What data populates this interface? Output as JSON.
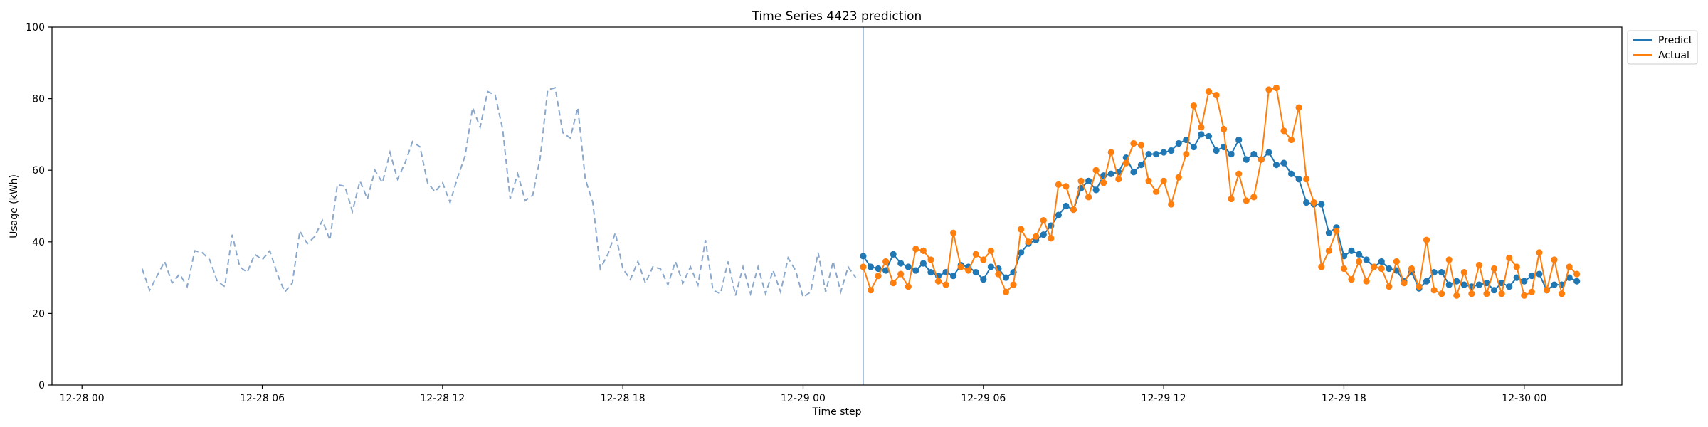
{
  "chart_data": {
    "type": "line",
    "title": "Time Series 4423 prediction",
    "xlabel": "Time step",
    "ylabel": "Usage (kWh)",
    "ylim": [
      0,
      100
    ],
    "yticks": [
      0,
      20,
      40,
      60,
      80,
      100
    ],
    "xlim": [
      "2022-12-27 23:00",
      "2022-12-30 03:15"
    ],
    "xticks": [
      {
        "label": "12-28 00",
        "t": "2022-12-28 00:00"
      },
      {
        "label": "12-28 06",
        "t": "2022-12-28 06:00"
      },
      {
        "label": "12-28 12",
        "t": "2022-12-28 12:00"
      },
      {
        "label": "12-28 18",
        "t": "2022-12-28 18:00"
      },
      {
        "label": "12-29 00",
        "t": "2022-12-29 00:00"
      },
      {
        "label": "12-29 06",
        "t": "2022-12-29 06:00"
      },
      {
        "label": "12-29 12",
        "t": "2022-12-29 12:00"
      },
      {
        "label": "12-29 18",
        "t": "2022-12-29 18:00"
      },
      {
        "label": "12-30 00",
        "t": "2022-12-30 00:00"
      }
    ],
    "forecast_start": "2022-12-29 02:00",
    "grid": false,
    "legend_position": "outside-top-right",
    "interval_minutes": 15,
    "history": {
      "start": "2022-12-28 02:00",
      "style": "dashed",
      "color": "#8aa8cc",
      "values": [
        32.5,
        26.5,
        30.5,
        34.5,
        28.5,
        31,
        27.5,
        37.5,
        37,
        35,
        29,
        27.5,
        42,
        33,
        31.5,
        36.5,
        35,
        37.5,
        31,
        26,
        28.5,
        43,
        39.5,
        41.5,
        46,
        40.5,
        56,
        55.5,
        48.5,
        57,
        52,
        60,
        56.5,
        65,
        57.5,
        62,
        68,
        66.5,
        56.5,
        54,
        56.5,
        51,
        58,
        64,
        77.5,
        72,
        82,
        81,
        71.5,
        52,
        59,
        51.5,
        53,
        63.5,
        82.5,
        83,
        70.5,
        69,
        77.5,
        57.5,
        51,
        32.5,
        36.5,
        42.5,
        32.5,
        29.5,
        34.5,
        28.5,
        33,
        32.5,
        28,
        34.5,
        28.5,
        33,
        28,
        40.5,
        26.5,
        25.5,
        34.5,
        25,
        33,
        25.5,
        33,
        25.5,
        32,
        26,
        35.5,
        32,
        24.5,
        26,
        37,
        26,
        34.5,
        26,
        33,
        30
      ]
    },
    "series": [
      {
        "name": "Predict",
        "color": "#1f77b4",
        "start": "2022-12-29 02:00",
        "values": [
          36,
          33,
          32.5,
          32,
          36.5,
          34,
          33,
          32,
          34,
          31.5,
          30.5,
          31.5,
          30.5,
          33.5,
          33,
          31.5,
          29.5,
          33,
          32.5,
          30,
          31.5,
          37,
          39.5,
          40.5,
          42,
          44.5,
          47.5,
          50,
          49,
          55,
          57,
          54.5,
          58.5,
          59,
          59.5,
          63.5,
          59.5,
          61.5,
          64.5,
          64.5,
          65,
          65.5,
          67.5,
          68.5,
          66.5,
          70,
          69.5,
          65.5,
          66.5,
          64.5,
          68.5,
          63,
          64.5,
          63,
          65,
          61.5,
          62,
          59,
          57.5,
          51,
          50.5,
          50.5,
          42.5,
          44,
          36,
          37.5,
          36.5,
          35,
          33,
          34.5,
          32.5,
          32,
          29,
          31.5,
          27,
          29,
          31.5,
          31.5,
          28,
          29,
          28,
          27.5,
          28,
          28.5,
          26.5,
          28.5,
          27.5,
          30,
          29,
          30.5,
          31,
          26.5,
          28,
          28,
          30,
          29
        ]
      },
      {
        "name": "Actual",
        "color": "#ff7f0e",
        "start": "2022-12-29 02:00",
        "values": [
          33,
          26.5,
          30.5,
          34.5,
          28.5,
          31,
          27.5,
          38,
          37.5,
          35,
          29,
          28,
          42.5,
          33,
          32,
          36.5,
          35,
          37.5,
          31,
          26,
          28,
          43.5,
          40,
          41.5,
          46,
          41,
          56,
          55.5,
          49,
          57,
          52.5,
          60,
          56.5,
          65,
          57.5,
          62,
          67.5,
          67,
          57,
          54,
          57,
          50.5,
          58,
          64.5,
          78,
          72,
          82,
          81,
          71.5,
          52,
          59,
          51.5,
          52.5,
          63,
          82.5,
          83,
          71,
          68.5,
          77.5,
          57.5,
          51,
          33,
          37.5,
          43,
          32.5,
          29.5,
          34.5,
          29,
          33,
          32.5,
          27.5,
          34.5,
          28.5,
          32.5,
          27.5,
          40.5,
          26.5,
          25.5,
          35,
          25,
          31.5,
          25.5,
          33.5,
          25.5,
          32.5,
          25.5,
          35.5,
          33,
          25,
          26,
          37,
          26.5,
          35,
          25.5,
          33,
          31
        ]
      }
    ]
  }
}
